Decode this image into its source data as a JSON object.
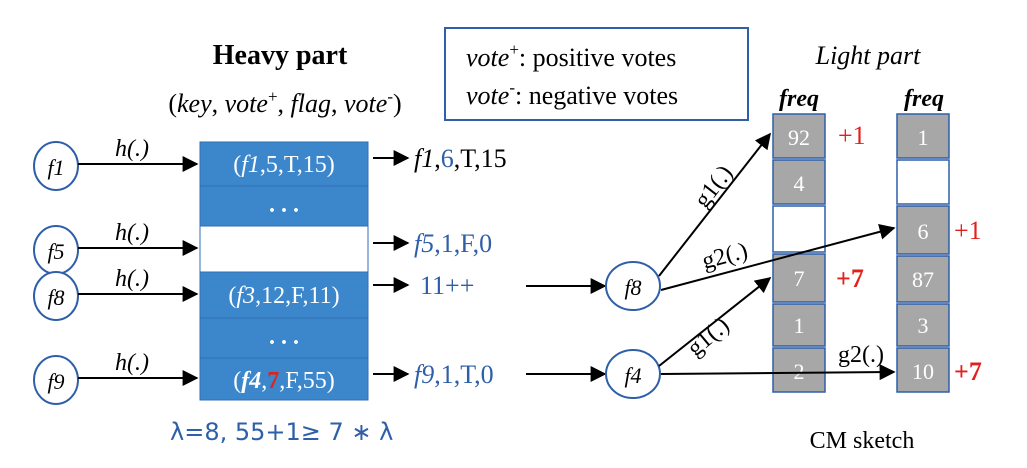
{
  "heavy": {
    "title": "Heavy part",
    "tuple": {
      "open": "(",
      "key": "key",
      "vote_pos": "vote",
      "plus": "+",
      "flag": "flag",
      "vote_neg": "vote",
      "minus": "-",
      "close": ")"
    },
    "rows": [
      {
        "key": "f1",
        "rest": ",5,T,15)"
      },
      {
        "dots": ". . ."
      },
      {
        "empty": true
      },
      {
        "key": "f3",
        "rest": ",12,F,11)"
      },
      {
        "dots": ". . ."
      },
      {
        "key": "f4",
        "vote": "7",
        "rest": ",F,55)"
      }
    ],
    "lambda_note": "λ=8, 55+1≥ 7 ∗ λ"
  },
  "legend": {
    "pos_key": "vote",
    "pos_sup": "+",
    "pos_text": ": positive votes",
    "neg_key": "vote",
    "neg_sup": "-",
    "neg_text": ": negative votes"
  },
  "flows": [
    {
      "name": "f1",
      "label": "h(.)"
    },
    {
      "name": "f5",
      "label": "h(.)"
    },
    {
      "name": "f8",
      "label": "h(.)"
    },
    {
      "name": "f9",
      "label": "h(.)"
    }
  ],
  "outputs": {
    "o1_key": "f1",
    "o1_vote": "6",
    "o1_rest": ",T,15",
    "o2_key": "f5",
    "o2_rest": ",1,F,0",
    "o3": "11++",
    "o4_key": "f9",
    "o4_rest": ",1,T,0"
  },
  "middle_flows": [
    "f8",
    "f4"
  ],
  "hash_labels": [
    "g1(.)",
    "g2(.)",
    "g1(.)",
    "g2(.)"
  ],
  "light": {
    "title": "Light part",
    "col1_header": "freq",
    "col2_header": "freq",
    "col1": [
      "92",
      "4",
      "",
      "7",
      "1",
      "2"
    ],
    "col2": [
      "1",
      "",
      "6",
      "87",
      "3",
      "10"
    ],
    "col1_increments": [
      "+1",
      "+7"
    ],
    "col2_increments": [
      "+1",
      "+7"
    ],
    "caption": "CM sketch"
  },
  "colors": {
    "blue": "#3c87cc",
    "blue_text": "#2e5fa8",
    "gray": "#a7a7a7",
    "red": "#e0221c",
    "border": "#2e5fa8"
  }
}
